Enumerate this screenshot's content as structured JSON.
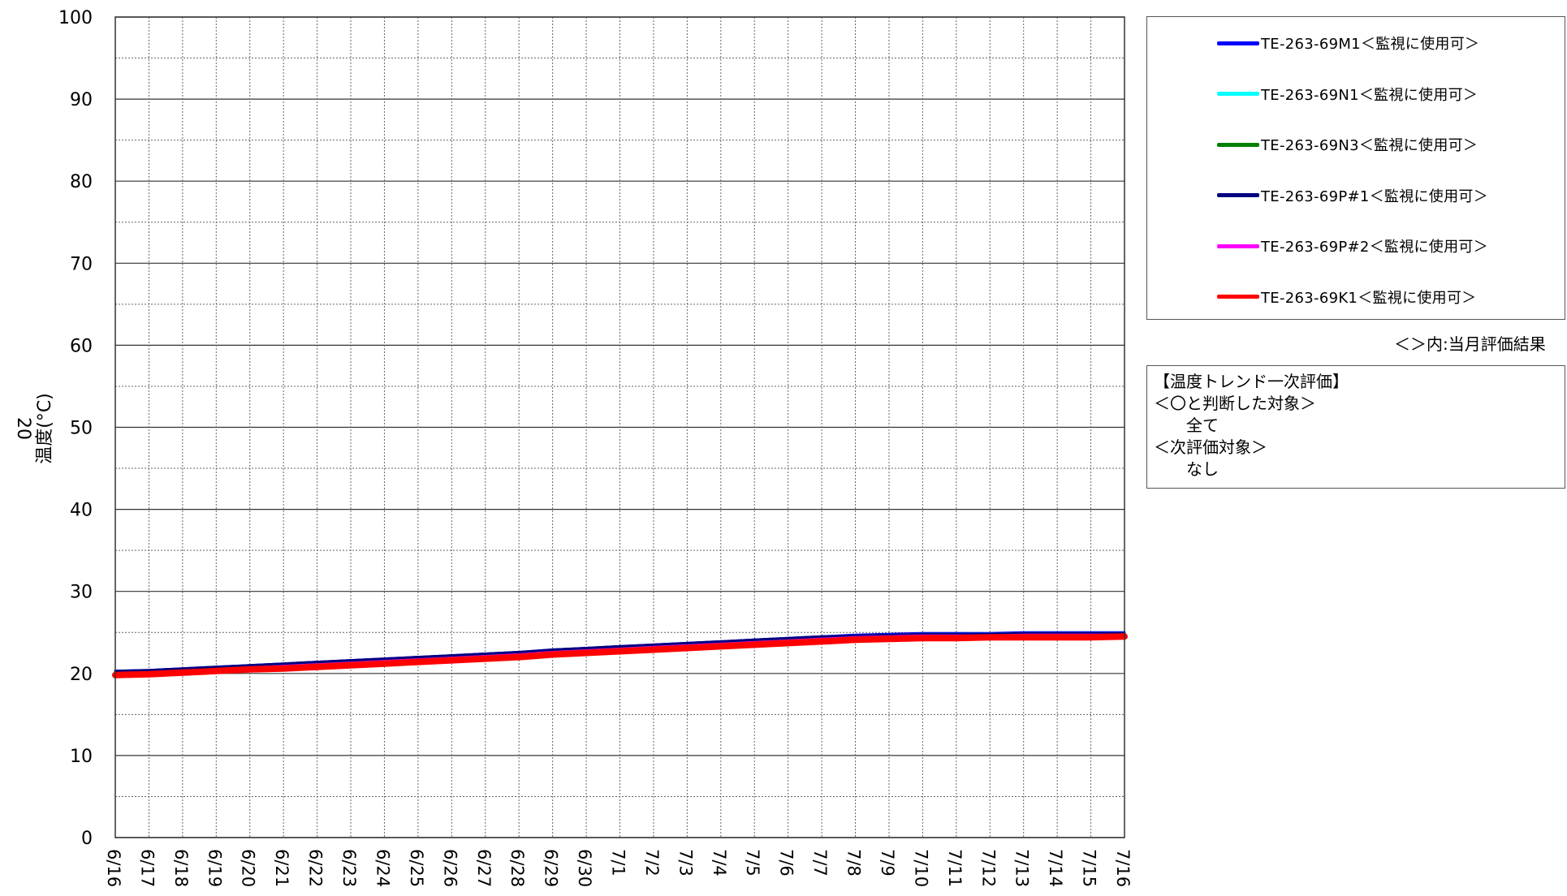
{
  "chart_data": {
    "type": "line",
    "title": "",
    "ylabel": "温度(°C)",
    "ylabel_prefix": "20",
    "xlabel": "",
    "ylim": [
      0,
      100
    ],
    "yticks": [
      0,
      10,
      20,
      30,
      40,
      50,
      60,
      70,
      80,
      90,
      100
    ],
    "grid": true,
    "categories": [
      "6/16",
      "6/17",
      "6/18",
      "6/19",
      "6/20",
      "6/21",
      "6/22",
      "6/23",
      "6/24",
      "6/25",
      "6/26",
      "6/27",
      "6/28",
      "6/29",
      "6/30",
      "7/1",
      "7/2",
      "7/3",
      "7/4",
      "7/5",
      "7/6",
      "7/7",
      "7/8",
      "7/9",
      "7/10",
      "7/11",
      "7/12",
      "7/13",
      "7/14",
      "7/15",
      "7/16"
    ],
    "series": [
      {
        "name": "TE-263-69M1＜監視に使用可＞",
        "color": "#0000ff",
        "values": [
          20.3,
          20.4,
          20.6,
          20.8,
          21.0,
          21.2,
          21.4,
          21.6,
          21.8,
          22.0,
          22.2,
          22.4,
          22.6,
          22.9,
          23.1,
          23.3,
          23.5,
          23.7,
          23.9,
          24.1,
          24.3,
          24.5,
          24.7,
          24.8,
          24.9,
          24.9,
          24.9,
          25.0,
          25.0,
          25.0,
          25.0
        ]
      },
      {
        "name": "TE-263-69N1＜監視に使用可＞",
        "color": "#00ffff",
        "values": [
          20.2,
          20.3,
          20.5,
          20.7,
          20.9,
          21.1,
          21.3,
          21.5,
          21.7,
          21.9,
          22.1,
          22.3,
          22.5,
          22.8,
          23.0,
          23.2,
          23.4,
          23.6,
          23.8,
          24.0,
          24.2,
          24.4,
          24.6,
          24.7,
          24.8,
          24.8,
          24.8,
          24.9,
          24.9,
          24.9,
          24.9
        ]
      },
      {
        "name": "TE-263-69N3＜監視に使用可＞",
        "color": "#008000",
        "values": [
          20.1,
          20.2,
          20.4,
          20.6,
          20.8,
          21.0,
          21.2,
          21.4,
          21.6,
          21.8,
          22.0,
          22.2,
          22.4,
          22.7,
          22.9,
          23.1,
          23.3,
          23.5,
          23.7,
          23.9,
          24.1,
          24.3,
          24.5,
          24.6,
          24.7,
          24.7,
          24.7,
          24.8,
          24.8,
          24.8,
          24.8
        ]
      },
      {
        "name": "TE-263-69P#1＜監視に使用可＞",
        "color": "#000080",
        "values": [
          20.3,
          20.4,
          20.6,
          20.8,
          21.0,
          21.2,
          21.4,
          21.6,
          21.8,
          22.0,
          22.2,
          22.4,
          22.6,
          22.9,
          23.1,
          23.3,
          23.5,
          23.7,
          23.9,
          24.1,
          24.3,
          24.5,
          24.6,
          24.7,
          24.8,
          24.8,
          24.8,
          24.9,
          24.9,
          24.9,
          24.9
        ]
      },
      {
        "name": "TE-263-69P#2＜監視に使用可＞",
        "color": "#ff00ff",
        "values": [
          20.0,
          20.1,
          20.3,
          20.5,
          20.7,
          20.9,
          21.1,
          21.3,
          21.5,
          21.7,
          21.9,
          22.1,
          22.3,
          22.6,
          22.8,
          23.0,
          23.2,
          23.4,
          23.6,
          23.8,
          24.0,
          24.2,
          24.4,
          24.5,
          24.6,
          24.6,
          24.6,
          24.7,
          24.7,
          24.7,
          24.7
        ]
      },
      {
        "name": "TE-263-69K1＜監視に使用可＞",
        "color": "#ff0000",
        "values": [
          19.8,
          19.9,
          20.1,
          20.3,
          20.5,
          20.6,
          20.8,
          21.0,
          21.2,
          21.4,
          21.6,
          21.8,
          22.0,
          22.3,
          22.5,
          22.7,
          22.9,
          23.1,
          23.3,
          23.5,
          23.7,
          23.9,
          24.1,
          24.2,
          24.3,
          24.3,
          24.4,
          24.4,
          24.4,
          24.4,
          24.5
        ]
      }
    ],
    "legend_position": "right"
  },
  "legend": {
    "items": [
      {
        "label": "TE-263-69M1＜監視に使用可＞",
        "color": "#0000ff"
      },
      {
        "label": "TE-263-69N1＜監視に使用可＞",
        "color": "#00ffff"
      },
      {
        "label": "TE-263-69N3＜監視に使用可＞",
        "color": "#008000"
      },
      {
        "label": "TE-263-69P#1＜監視に使用可＞",
        "color": "#000080"
      },
      {
        "label": "TE-263-69P#2＜監視に使用可＞",
        "color": "#ff00ff"
      },
      {
        "label": "TE-263-69K1＜監視に使用可＞",
        "color": "#ff0000"
      }
    ],
    "note": "＜＞内:当月評価結果"
  },
  "evaluation": {
    "heading": "【温度トレンド一次評価】",
    "ok_label": "＜〇と判断した対象＞",
    "ok_value": "全て",
    "next_label": "＜次評価対象＞",
    "next_value": "なし"
  }
}
